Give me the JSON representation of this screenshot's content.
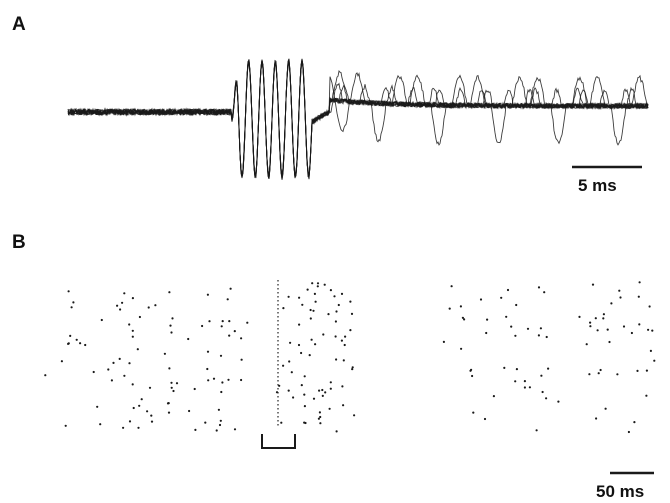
{
  "panels": {
    "a": {
      "label": "A",
      "scale_bar_label": "5 ms"
    },
    "b": {
      "label": "B",
      "scale_bar_label": "50 ms"
    }
  },
  "colors": {
    "ink": "#1a1a1a",
    "background": "#ffffff"
  }
}
